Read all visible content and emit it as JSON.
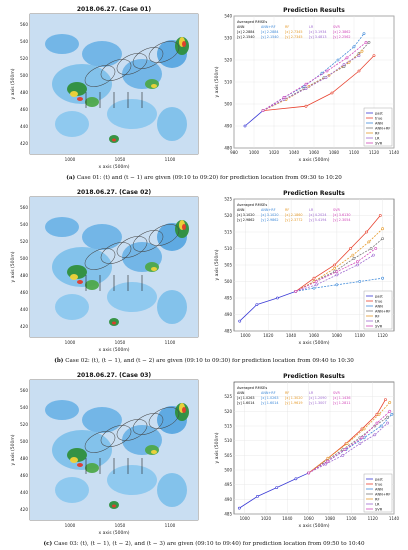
{
  "panels": [
    {
      "map": {
        "title": "2018.06.27. (Case 01)",
        "xlabel": "x axis (500m)",
        "ylabel": "y axis (500m)",
        "xticks": [
          "1000",
          "1050",
          "1100"
        ],
        "yticks": [
          "560",
          "540",
          "520",
          "500",
          "480",
          "460",
          "440",
          "420"
        ]
      },
      "chart_data": {
        "type": "line",
        "title": "Prediction Results",
        "xlabel": "x axis (500m)",
        "ylabel": "y axis (500m)",
        "xlim": [
          980,
          1140
        ],
        "ylim": [
          480,
          540
        ],
        "xticks": [
          980,
          1000,
          1020,
          1040,
          1060,
          1080,
          1100,
          1120,
          1140
        ],
        "yticks": [
          480,
          490,
          500,
          510,
          520,
          530,
          540
        ],
        "rmse_header": [
          "Averaged RMSEs",
          "ANN",
          "ANN+RF",
          "RF",
          "LR",
          "SVR"
        ],
        "rmse_rows": [
          {
            "label": "[x] 2.2884",
            "v1": "[x] 2.2884",
            "v2": "[x] 2.7345",
            "v3": "[x] 3.1934",
            "v4": "[x] 2.3862"
          },
          {
            "label": "[y] 2.1540",
            "v1": "[y] 2.1540",
            "v2": "[y] 2.7345",
            "v3": "[y] 3.4813",
            "v4": "[y] 2.2562"
          }
        ],
        "legend": [
          "past",
          "true",
          "ANN",
          "ANN+RF",
          "RF",
          "LR",
          "SVR"
        ],
        "series": [
          {
            "name": "past",
            "color": "#3b3bd6",
            "x": [
              991,
              1009
            ],
            "y": [
              490,
              497
            ]
          },
          {
            "name": "true",
            "color": "#e8422f",
            "x": [
              1009,
              1052,
              1078,
              1105,
              1120
            ],
            "y": [
              497,
              499,
              505,
              515,
              522
            ]
          },
          {
            "name": "ANN",
            "color": "#3f8ad9",
            "x": [
              1009,
              1030,
              1050,
              1068,
              1084,
              1100,
              1110
            ],
            "y": [
              497,
              503,
              508,
              514,
              520,
              526,
              532
            ]
          },
          {
            "name": "ANN+RF",
            "color": "#7a7a7a",
            "x": [
              1009,
              1030,
              1050,
              1070,
              1090,
              1105,
              1115
            ],
            "y": [
              497,
              502,
              507,
              512,
              517,
              523,
              528
            ]
          },
          {
            "name": "RF",
            "color": "#e59a2a",
            "x": [
              1009,
              1032,
              1055,
              1075,
              1095,
              1108
            ],
            "y": [
              497,
              502,
              508,
              513,
              519,
              524
            ]
          },
          {
            "name": "LR",
            "color": "#9f6bd0",
            "x": [
              1009,
              1030,
              1052,
              1072,
              1090,
              1105
            ],
            "y": [
              497,
              502,
              507,
              512,
              518,
              522
            ]
          },
          {
            "name": "SVR",
            "color": "#d146b9",
            "x": [
              1009,
              1030,
              1052,
              1073,
              1093,
              1112
            ],
            "y": [
              497,
              503,
              509,
              515,
              521,
              528
            ]
          }
        ]
      },
      "caption": {
        "tag": "(a)",
        "text": "Case 01: (t) and (t − 1) are given (09:10 to 09:20) for prediction location from 09:30 to 10:20"
      }
    },
    {
      "map": {
        "title": "2018.06.27. (Case 02)",
        "xlabel": "x axis (500m)",
        "ylabel": "y axis (500m)",
        "xticks": [
          "1000",
          "1050",
          "1100"
        ],
        "yticks": [
          "560",
          "540",
          "520",
          "500",
          "480",
          "460",
          "440",
          "420"
        ]
      },
      "chart_data": {
        "type": "line",
        "title": "Prediction Results",
        "xlabel": "x axis (500m)",
        "ylabel": "y axis (500m)",
        "xlim": [
          990,
          1130
        ],
        "ylim": [
          485,
          525
        ],
        "xticks": [
          1000,
          1020,
          1040,
          1060,
          1080,
          1100,
          1120
        ],
        "yticks": [
          485,
          490,
          495,
          500,
          505,
          510,
          515,
          520,
          525
        ],
        "rmse_header": [
          "Averaged RMSEs",
          "ANN",
          "ANN+RF",
          "RF",
          "LR",
          "SVR"
        ],
        "rmse_rows": [
          {
            "label": "[x] 3.1020",
            "v1": "[x] 3.1020",
            "v2": "[x] 2.1860",
            "v3": "[x] 4.2024",
            "v4": "[x] 3.6130"
          },
          {
            "label": "[y] 2.9862",
            "v1": "[y] 2.9862",
            "v2": "[y] 2.3772",
            "v3": "[y] 5.4194",
            "v4": "[y] 2.3054"
          }
        ],
        "legend": [
          "past",
          "true",
          "ANN",
          "ANN+RF",
          "RF",
          "LR",
          "SVR"
        ],
        "series": [
          {
            "name": "past",
            "color": "#3b3bd6",
            "x": [
              995,
              1010,
              1028,
              1044
            ],
            "y": [
              488,
              493,
              495,
              497
            ]
          },
          {
            "name": "true",
            "color": "#e8422f",
            "x": [
              1044,
              1060,
              1078,
              1092,
              1106,
              1118
            ],
            "y": [
              497,
              501,
              505,
              510,
              515,
              520
            ]
          },
          {
            "name": "ANN",
            "color": "#3f8ad9",
            "x": [
              1044,
              1060,
              1080,
              1100,
              1120
            ],
            "y": [
              497,
              498,
              499,
              500,
              501
            ]
          },
          {
            "name": "ANN+RF",
            "color": "#7a7a7a",
            "x": [
              1044,
              1060,
              1078,
              1095,
              1110,
              1120
            ],
            "y": [
              497,
              500,
              503,
              507,
              510,
              513
            ]
          },
          {
            "name": "RF",
            "color": "#e59a2a",
            "x": [
              1044,
              1060,
              1078,
              1094,
              1108,
              1120
            ],
            "y": [
              497,
              500,
              504,
              508,
              512,
              516
            ]
          },
          {
            "name": "LR",
            "color": "#9f6bd0",
            "x": [
              1044,
              1062,
              1080,
              1098,
              1112
            ],
            "y": [
              497,
              499,
              502,
              505,
              508
            ]
          },
          {
            "name": "SVR",
            "color": "#d146b9",
            "x": [
              1044,
              1062,
              1080,
              1098,
              1114
            ],
            "y": [
              497,
              500,
              503,
              506,
              510
            ]
          }
        ]
      },
      "caption": {
        "tag": "(b)",
        "text": "Case 02: (t), (t − 1), and (t − 2) are given (09:10 to 09:30) for prediction location from 09:40 to 10:30"
      }
    },
    {
      "map": {
        "title": "2018.06.27. (Case 03)",
        "xlabel": "x axis (500m)",
        "ylabel": "y axis (500m)",
        "xticks": [
          "1000",
          "1050",
          "1100"
        ],
        "yticks": [
          "560",
          "540",
          "520",
          "500",
          "480",
          "460",
          "440",
          "420"
        ]
      },
      "chart_data": {
        "type": "line",
        "title": "Prediction Results",
        "xlabel": "x axis (500m)",
        "ylabel": "y axis (500m)",
        "xlim": [
          990,
          1140
        ],
        "ylim": [
          485,
          530
        ],
        "xticks": [
          1000,
          1020,
          1040,
          1060,
          1080,
          1100,
          1120,
          1140
        ],
        "yticks": [
          485,
          490,
          495,
          500,
          505,
          510,
          515,
          520,
          525
        ],
        "rmse_header": [
          "Averaged RMSEs",
          "ANN",
          "ANN+RF",
          "RF",
          "LR",
          "SVR"
        ],
        "rmse_rows": [
          {
            "label": "[x] 1.0263",
            "v1": "[x] 1.0263",
            "v2": "[x] 1.3020",
            "v3": "[x] 1.2090",
            "v4": "[x] 1.1436"
          },
          {
            "label": "[y] 1.6014",
            "v1": "[y] 1.6014",
            "v2": "[y] 1.9619",
            "v3": "[y] 1.3007",
            "v4": "[y] 1.2811"
          }
        ],
        "legend": [
          "past",
          "true",
          "ANN",
          "ANN+RF",
          "RF",
          "LR",
          "SVR"
        ],
        "series": [
          {
            "name": "past",
            "color": "#3b3bd6",
            "x": [
              995,
              1012,
              1030,
              1048,
              1060
            ],
            "y": [
              487,
              491,
              494,
              497,
              499
            ]
          },
          {
            "name": "true",
            "color": "#e8422f",
            "x": [
              1060,
              1078,
              1095,
              1110,
              1124,
              1132
            ],
            "y": [
              499,
              504,
              509,
              514,
              519,
              524
            ]
          },
          {
            "name": "ANN",
            "color": "#3f8ad9",
            "x": [
              1060,
              1078,
              1095,
              1112,
              1128,
              1138
            ],
            "y": [
              499,
              503,
              507,
              511,
              515,
              519
            ]
          },
          {
            "name": "ANN+RF",
            "color": "#7a7a7a",
            "x": [
              1060,
              1076,
              1092,
              1108,
              1122,
              1134
            ],
            "y": [
              499,
              503,
              507,
              511,
              515,
              518
            ]
          },
          {
            "name": "RF",
            "color": "#e59a2a",
            "x": [
              1060,
              1078,
              1096,
              1112,
              1126,
              1136
            ],
            "y": [
              499,
              504,
              509,
              514,
              519,
              523
            ]
          },
          {
            "name": "LR",
            "color": "#9f6bd0",
            "x": [
              1060,
              1076,
              1092,
              1108,
              1122,
              1134
            ],
            "y": [
              499,
              502,
              505,
              509,
              512,
              516
            ]
          },
          {
            "name": "SVR",
            "color": "#d146b9",
            "x": [
              1060,
              1078,
              1094,
              1110,
              1124,
              1136
            ],
            "y": [
              499,
              503,
              507,
              511,
              516,
              520
            ]
          }
        ]
      },
      "caption": {
        "tag": "(c)",
        "text": "Case 03: (t), (t − 1), (t − 2), and (t − 3) are given (09:10 to 09:40) for prediction location from 09:50 to 10:40"
      }
    }
  ]
}
